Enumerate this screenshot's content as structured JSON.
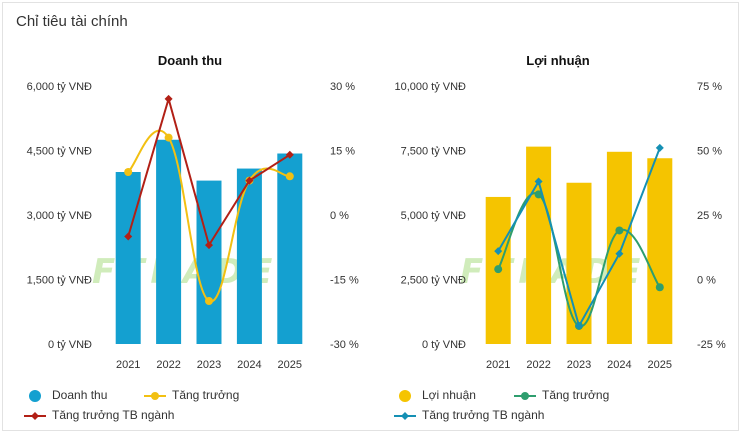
{
  "page_title": "Chỉ tiêu tài chính",
  "chart_data": [
    {
      "type": "bar",
      "title": "Doanh thu",
      "categories": [
        "2021",
        "2022",
        "2023",
        "2024",
        "2025"
      ],
      "y_left": {
        "min": 0,
        "max": 6000,
        "ticks": [
          0,
          1500,
          3000,
          4500,
          6000
        ],
        "tick_labels": [
          "0 tỷ VNĐ",
          "1,500 tỷ VNĐ",
          "3,000 tỷ VNĐ",
          "4,500 tỷ VNĐ",
          "6,000 tỷ VNĐ"
        ]
      },
      "y_right": {
        "min": -30,
        "max": 30,
        "ticks": [
          -30,
          -15,
          0,
          15,
          30
        ],
        "tick_labels": [
          "-30 %",
          "-15 %",
          "0 %",
          "15 %",
          "30 %"
        ]
      },
      "series": [
        {
          "name": "Doanh thu",
          "kind": "bar",
          "axis": "left",
          "color": "#14A0D0",
          "values": [
            4000,
            4750,
            3800,
            4080,
            4430
          ]
        },
        {
          "name": "Tăng trưởng",
          "kind": "line",
          "axis": "right",
          "color": "#F2C012",
          "smooth": true,
          "values": [
            10,
            18,
            -20,
            8,
            9
          ]
        },
        {
          "name": "Tăng trưởng TB ngành",
          "kind": "line",
          "axis": "right",
          "color": "#B22016",
          "values": [
            -5,
            27,
            -7,
            8,
            14
          ]
        }
      ]
    },
    {
      "type": "bar",
      "title": "Lợi nhuận",
      "categories": [
        "2021",
        "2022",
        "2023",
        "2024",
        "2025"
      ],
      "y_left": {
        "min": 0,
        "max": 10000,
        "ticks": [
          0,
          2500,
          5000,
          7500,
          10000
        ],
        "tick_labels": [
          "0 tỷ VNĐ",
          "2,500 tỷ VNĐ",
          "5,000 tỷ VNĐ",
          "7,500 tỷ VNĐ",
          "10,000 tỷ VNĐ"
        ]
      },
      "y_right": {
        "min": -25,
        "max": 75,
        "ticks": [
          -25,
          0,
          25,
          50,
          75
        ],
        "tick_labels": [
          "-25 %",
          "0 %",
          "25 %",
          "50 %",
          "75 %"
        ]
      },
      "series": [
        {
          "name": "Lợi nhuận",
          "kind": "bar",
          "axis": "left",
          "color": "#F5C400",
          "values": [
            5700,
            7650,
            6250,
            7450,
            7200
          ]
        },
        {
          "name": "Tăng trưởng",
          "kind": "line",
          "axis": "right",
          "color": "#2E9E6E",
          "smooth": true,
          "values": [
            4,
            33,
            -18,
            19,
            -3
          ]
        },
        {
          "name": "Tăng trưởng TB ngành",
          "kind": "line",
          "axis": "right",
          "color": "#1590B4",
          "values": [
            11,
            38,
            -18,
            10,
            51
          ]
        }
      ]
    }
  ]
}
